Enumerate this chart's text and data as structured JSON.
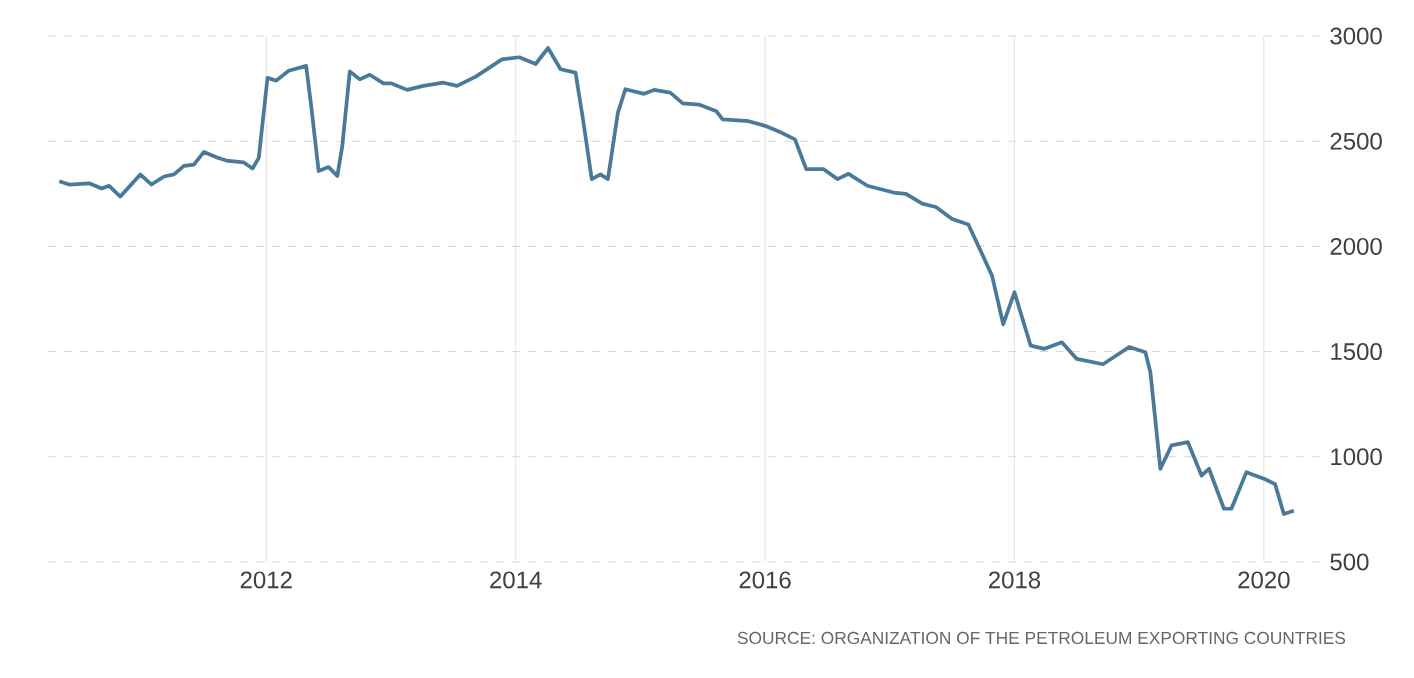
{
  "chart_data": {
    "type": "line",
    "color": "#4a7a9a",
    "grid": true,
    "line_style": "solid",
    "x": [
      2010.34,
      2010.42,
      2010.58,
      2010.68,
      2010.74,
      2010.83,
      2010.99,
      2011.08,
      2011.18,
      2011.26,
      2011.34,
      2011.42,
      2011.5,
      2011.61,
      2011.68,
      2011.82,
      2011.89,
      2011.94,
      2012.01,
      2012.08,
      2012.18,
      2012.32,
      2012.36,
      2012.42,
      2012.5,
      2012.57,
      2012.61,
      2012.67,
      2012.75,
      2012.83,
      2012.94,
      2013.0,
      2013.13,
      2013.26,
      2013.42,
      2013.53,
      2013.68,
      2013.89,
      2014.03,
      2014.16,
      2014.26,
      2014.36,
      2014.48,
      2014.54,
      2014.61,
      2014.68,
      2014.74,
      2014.82,
      2014.88,
      2015.03,
      2015.11,
      2015.24,
      2015.34,
      2015.47,
      2015.61,
      2015.66,
      2015.87,
      2016.0,
      2016.13,
      2016.24,
      2016.33,
      2016.47,
      2016.58,
      2016.67,
      2016.82,
      2017.03,
      2017.13,
      2017.26,
      2017.37,
      2017.5,
      2017.63,
      2017.71,
      2017.82,
      2017.91,
      2018.0,
      2018.13,
      2018.24,
      2018.38,
      2018.5,
      2018.71,
      2018.92,
      2019.05,
      2019.09,
      2019.17,
      2019.26,
      2019.39,
      2019.5,
      2019.56,
      2019.68,
      2019.74,
      2019.86,
      2020.0,
      2020.09,
      2020.16,
      2020.24
    ],
    "values": [
      2310,
      2294,
      2300,
      2275,
      2288,
      2237,
      2342,
      2294,
      2332,
      2342,
      2383,
      2389,
      2449,
      2421,
      2408,
      2399,
      2370,
      2421,
      2801,
      2788,
      2835,
      2858,
      2668,
      2358,
      2377,
      2335,
      2478,
      2832,
      2794,
      2816,
      2775,
      2775,
      2744,
      2763,
      2778,
      2763,
      2807,
      2889,
      2899,
      2867,
      2943,
      2842,
      2826,
      2604,
      2320,
      2342,
      2320,
      2636,
      2747,
      2725,
      2744,
      2731,
      2680,
      2674,
      2642,
      2604,
      2595,
      2573,
      2541,
      2509,
      2367,
      2367,
      2320,
      2345,
      2288,
      2256,
      2250,
      2203,
      2187,
      2130,
      2104,
      2003,
      1861,
      1630,
      1782,
      1528,
      1513,
      1544,
      1465,
      1440,
      1522,
      1497,
      1402,
      943,
      1054,
      1070,
      911,
      943,
      753,
      753,
      927,
      896,
      870,
      728,
      744
    ],
    "xlim": [
      2010.25,
      2020.45
    ],
    "ylim": [
      500,
      3000
    ],
    "xticks": [
      2012,
      2014,
      2016,
      2018,
      2020
    ],
    "yticks": [
      500,
      1000,
      1500,
      2000,
      2500,
      3000
    ],
    "annotations": [
      "SOURCE: ORGANIZATION OF THE PETROLEUM EXPORTING COUNTRIES"
    ]
  }
}
